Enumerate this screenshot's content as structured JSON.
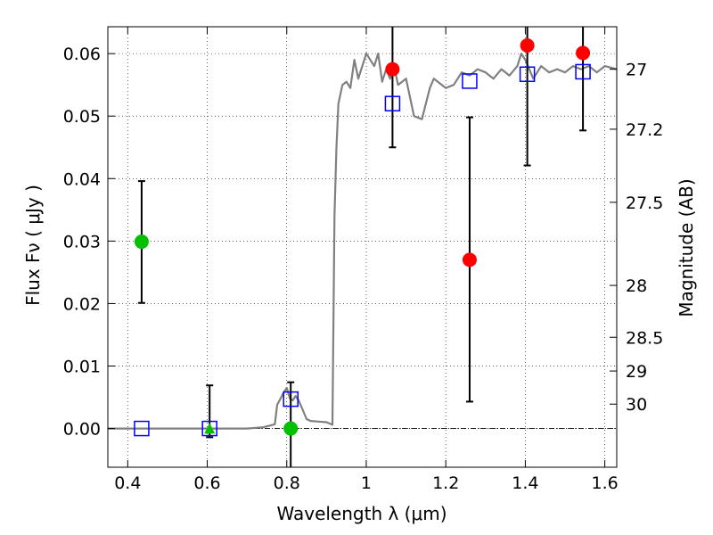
{
  "chart_data": {
    "type": "scatter",
    "title": "",
    "xlabel": "Wavelength  λ (μm)",
    "ylabel": "Flux  Fν  ( μJy )",
    "right_ylabel": "Magnitude (AB)",
    "xlim": [
      0.35,
      1.63
    ],
    "ylim": [
      -0.0062,
      0.0643
    ],
    "x_ticks": [
      0.4,
      0.6,
      0.8,
      1.0,
      1.2,
      1.4,
      1.6
    ],
    "x_tick_labels": [
      "0.4",
      "0.6",
      "0.8",
      "1",
      "1.2",
      "1.4",
      "1.6"
    ],
    "y_ticks": [
      0.0,
      0.01,
      0.02,
      0.03,
      0.04,
      0.05,
      0.06
    ],
    "y_tick_labels": [
      "0.00",
      "0.01",
      "0.02",
      "0.03",
      "0.04",
      "0.05",
      "0.06"
    ],
    "right_ticks": [
      {
        "label": "27",
        "flux": 0.0575
      },
      {
        "label": "27.2",
        "flux": 0.0479
      },
      {
        "label": "27.5",
        "flux": 0.0362
      },
      {
        "label": "28",
        "flux": 0.0229
      },
      {
        "label": "28.5",
        "flux": 0.0146
      },
      {
        "label": "29",
        "flux": 0.0092
      },
      {
        "label": "30",
        "flux": 0.0039
      }
    ],
    "grid": true,
    "colors": {
      "model": "#808080",
      "red": "#ff0000",
      "green": "#00c000",
      "squares": "#0000ff",
      "errorbar": "#000000"
    },
    "model_spectrum": {
      "name": "model SED",
      "x": [
        0.35,
        0.5,
        0.6,
        0.7,
        0.74,
        0.76,
        0.77,
        0.776,
        0.782,
        0.79,
        0.8,
        0.808,
        0.815,
        0.822,
        0.83,
        0.84,
        0.85,
        0.86,
        0.88,
        0.9,
        0.915,
        0.92,
        0.925,
        0.93,
        0.94,
        0.95,
        0.96,
        0.97,
        0.98,
        0.99,
        1.0,
        1.01,
        1.02,
        1.03,
        1.04,
        1.05,
        1.06,
        1.07,
        1.08,
        1.1,
        1.12,
        1.14,
        1.16,
        1.17,
        1.18,
        1.2,
        1.22,
        1.24,
        1.26,
        1.28,
        1.3,
        1.32,
        1.34,
        1.36,
        1.38,
        1.39,
        1.4,
        1.42,
        1.44,
        1.46,
        1.48,
        1.5,
        1.52,
        1.54,
        1.56,
        1.58,
        1.6,
        1.63
      ],
      "y": [
        0.0,
        0.0,
        0.0,
        0.0,
        0.0002,
        0.0005,
        0.0007,
        0.0038,
        0.0045,
        0.0055,
        0.0065,
        0.0048,
        0.0045,
        0.0052,
        0.0045,
        0.003,
        0.0015,
        0.0012,
        0.0011,
        0.001,
        0.0006,
        0.034,
        0.045,
        0.052,
        0.055,
        0.0555,
        0.0545,
        0.059,
        0.056,
        0.058,
        0.06,
        0.059,
        0.058,
        0.06,
        0.0555,
        0.0575,
        0.056,
        0.058,
        0.055,
        0.056,
        0.05,
        0.0495,
        0.0545,
        0.056,
        0.0555,
        0.0545,
        0.055,
        0.057,
        0.0565,
        0.0575,
        0.057,
        0.056,
        0.0575,
        0.0565,
        0.058,
        0.06,
        0.059,
        0.056,
        0.058,
        0.057,
        0.0575,
        0.057,
        0.058,
        0.0575,
        0.058,
        0.057,
        0.058,
        0.0575
      ]
    },
    "series": [
      {
        "name": "red circles",
        "marker": "circle",
        "color": "#ff0000",
        "x": [
          1.066,
          1.26,
          1.405,
          1.545
        ],
        "y": [
          0.0575,
          0.027,
          0.0613,
          0.0601
        ],
        "yerr_low": [
          0.045,
          0.0043,
          0.0421,
          0.0477
        ],
        "yerr_high": [
          0.0643,
          0.0498,
          0.0643,
          0.0643
        ]
      },
      {
        "name": "green circles",
        "marker": "circle",
        "color": "#00c000",
        "x": [
          0.435,
          0.81
        ],
        "y": [
          0.0299,
          0.0
        ],
        "yerr_low": [
          0.0201,
          -0.0062
        ],
        "yerr_high": [
          0.0396,
          0.0074
        ]
      },
      {
        "name": "green triangle",
        "marker": "triangle",
        "color": "#00c000",
        "x": [
          0.606
        ],
        "y": [
          -0.0001
        ],
        "yerr_low": [
          -0.0014
        ],
        "yerr_high": [
          0.0069
        ]
      },
      {
        "name": "blue squares",
        "marker": "square",
        "color": "#0000ff",
        "x": [
          0.435,
          0.606,
          0.81,
          1.066,
          1.26,
          1.405,
          1.545
        ],
        "y": [
          0.0,
          0.0,
          0.0047,
          0.052,
          0.0556,
          0.0567,
          0.0571
        ]
      }
    ]
  }
}
